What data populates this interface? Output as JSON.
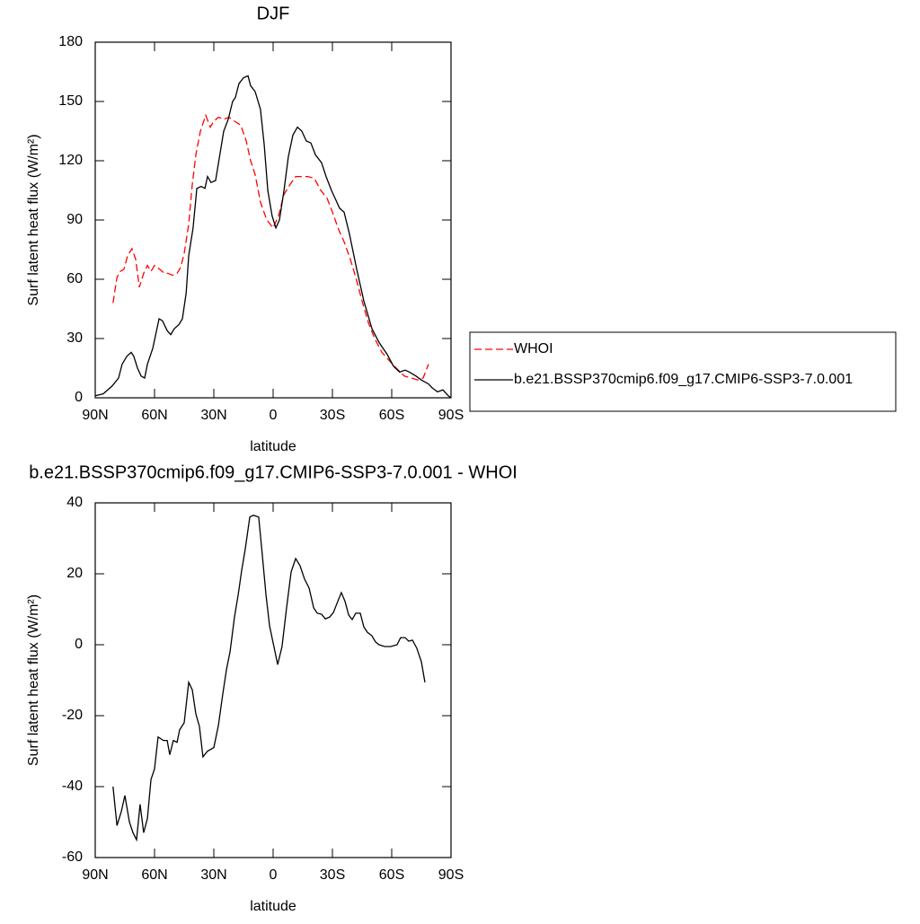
{
  "chart_data": [
    {
      "type": "line",
      "title": "DJF",
      "x_label": "latitude",
      "y_label": "Surf latent heat flux (W/m²)",
      "xlim": [
        90,
        -90
      ],
      "xticks": [
        {
          "value": 90,
          "label": "90N"
        },
        {
          "value": 60,
          "label": "60N"
        },
        {
          "value": 30,
          "label": "30N"
        },
        0,
        {
          "value": -30,
          "label": "30S"
        },
        {
          "value": -60,
          "label": "60S"
        },
        {
          "value": -90,
          "label": "90S"
        }
      ],
      "ylim": [
        0,
        180
      ],
      "yticks": [
        0,
        30,
        60,
        90,
        120,
        150,
        180
      ],
      "legend": "outside-right",
      "series": [
        {
          "name": "WHOI",
          "color": "#ff0000",
          "dashed": true,
          "x": [
            81,
            79,
            77.3,
            75.5,
            73.6,
            71.4,
            69.5,
            67.7,
            65.5,
            63.6,
            61.8,
            60,
            57.3,
            55,
            53.2,
            50.9,
            48.6,
            46.8,
            45,
            42.7,
            40.9,
            39.1,
            36.8,
            34.1,
            31.8,
            30,
            27.7,
            25,
            22.3,
            19.5,
            16.4,
            13.6,
            11.4,
            9.1,
            6.4,
            3.2,
            0,
            -2.7,
            -5.5,
            -8.6,
            -11.4,
            -14.5,
            -17.7,
            -20.9,
            -24.1,
            -27.3,
            -30,
            -33.2,
            -35.9,
            -39.1,
            -41.8,
            -45,
            -48.2,
            -51.4,
            -55,
            -58.6,
            -62.3,
            -66.4,
            -70,
            -73.2,
            -75.9,
            -78.6
          ],
          "values": [
            48,
            61,
            64,
            65,
            72,
            75.5,
            70,
            56,
            63,
            67,
            64,
            67,
            65,
            63,
            63,
            62,
            63,
            66,
            73,
            88,
            108,
            123,
            135,
            143,
            137,
            140,
            142,
            141,
            142,
            140,
            138,
            130,
            120,
            113,
            99,
            90,
            86,
            92,
            103,
            108,
            112,
            112,
            112,
            111,
            105,
            101,
            94,
            85,
            79,
            70,
            61,
            49,
            38,
            30,
            23,
            19,
            15,
            11,
            10,
            9,
            10,
            17
          ]
        },
        {
          "name": "b.e21.BSSP370cmip6.f09_g17.CMIP6-SSP3-7.0.001",
          "color": "#000000",
          "dashed": false,
          "x": [
            90,
            86,
            81.4,
            78.2,
            76.4,
            74,
            71.8,
            70.5,
            68.6,
            66.8,
            65,
            63.6,
            60.9,
            57.7,
            56,
            53.6,
            51.8,
            50,
            47.7,
            45.9,
            44,
            42.7,
            40.5,
            38.6,
            36.4,
            34.5,
            33.2,
            31.4,
            29.1,
            26.8,
            25,
            22.7,
            20.5,
            19.1,
            17.3,
            15,
            12.7,
            11.4,
            9.1,
            6.4,
            4.5,
            2.7,
            0.5,
            -1.4,
            -3.2,
            -5.5,
            -7.7,
            -10,
            -12.3,
            -14.5,
            -16.8,
            -19.1,
            -21.4,
            -24.5,
            -26.8,
            -29.5,
            -31.8,
            -33.6,
            -35.9,
            -38.6,
            -42.3,
            -45.9,
            -50,
            -53.6,
            -57.7,
            -60.9,
            -64,
            -66.8,
            -69,
            -72.3,
            -75,
            -78.6,
            -80.5,
            -83.2,
            -85.9,
            -88.6,
            -90
          ],
          "values": [
            1,
            2,
            6,
            10,
            17,
            21,
            23,
            21,
            15,
            11,
            10,
            17,
            25,
            40,
            39,
            34,
            32,
            35,
            37,
            40,
            53,
            72,
            86,
            106,
            107,
            106,
            112,
            109,
            110,
            124,
            135,
            141,
            150,
            152,
            159,
            162,
            163,
            158,
            155,
            146,
            128,
            105,
            92,
            86,
            90,
            105,
            122,
            133,
            137,
            135,
            130,
            129,
            123,
            119,
            112,
            105,
            100,
            96,
            94,
            83,
            65,
            49,
            35,
            28,
            22,
            16,
            13,
            14,
            13,
            11,
            9,
            7,
            5,
            3,
            4,
            1,
            0
          ]
        }
      ]
    },
    {
      "type": "line",
      "title": "b.e21.BSSP370cmip6.f09_g17.CMIP6-SSP3-7.0.001 - WHOI",
      "x_label": "latitude",
      "y_label": "Surf latent heat flux (W/m²)",
      "xlim": [
        90,
        -90
      ],
      "xticks": [
        {
          "value": 90,
          "label": "90N"
        },
        {
          "value": 60,
          "label": "60N"
        },
        {
          "value": 30,
          "label": "30N"
        },
        0,
        {
          "value": -30,
          "label": "30S"
        },
        {
          "value": -60,
          "label": "60S"
        },
        {
          "value": -90,
          "label": "90S"
        }
      ],
      "ylim": [
        -60,
        40
      ],
      "yticks": [
        -60,
        -40,
        -20,
        0,
        20,
        40
      ],
      "series": [
        {
          "color": "#000000",
          "dashed": false,
          "x": [
            81,
            79,
            76.8,
            75,
            72.7,
            70.9,
            69.1,
            67.3,
            65.5,
            63.6,
            61.8,
            60,
            58.2,
            55.5,
            53.6,
            52.3,
            50.5,
            48.6,
            47.3,
            45,
            42.7,
            40.9,
            39.1,
            37.3,
            35.5,
            33.2,
            30,
            27.7,
            25.5,
            23.6,
            21.8,
            19.5,
            17.7,
            15.9,
            14.1,
            11.8,
            10,
            7.3,
            5.5,
            3.6,
            1.8,
            -0.5,
            -2.3,
            -4.5,
            -6.8,
            -9.1,
            -11.4,
            -13.6,
            -15.9,
            -18.2,
            -20.5,
            -22.3,
            -24.5,
            -26.4,
            -28.6,
            -30.5,
            -32.7,
            -34.5,
            -36.4,
            -38.2,
            -40,
            -41.8,
            -44.1,
            -45.9,
            -47.7,
            -50,
            -51.8,
            -53.6,
            -56.4,
            -59.5,
            -62.7,
            -64.5,
            -66.8,
            -68.6,
            -70.5,
            -72.7,
            -75,
            -76.8
          ],
          "values": [
            -40,
            -51,
            -47,
            -42.5,
            -50,
            -53,
            -55,
            -45,
            -53,
            -49,
            -38,
            -35,
            -26,
            -27,
            -27,
            -31,
            -27,
            -27.5,
            -24,
            -22,
            -10.6,
            -12.7,
            -19.5,
            -23,
            -31.6,
            -30,
            -29,
            -22.8,
            -14,
            -7,
            -2,
            8,
            14,
            21,
            27,
            36,
            36.5,
            36,
            25.5,
            14,
            5.3,
            -0.8,
            -5.6,
            -0.5,
            10.4,
            20.5,
            24.3,
            22.3,
            18.5,
            16,
            10.4,
            8.9,
            8.6,
            7.3,
            7.8,
            9.1,
            12.2,
            14.7,
            12.2,
            8.4,
            7.1,
            8.9,
            8.9,
            5,
            3.5,
            2.5,
            0.8,
            0,
            -0.5,
            -0.5,
            0,
            2,
            2,
            1,
            1.3,
            -1,
            -4.8,
            -10.6
          ]
        }
      ]
    }
  ]
}
